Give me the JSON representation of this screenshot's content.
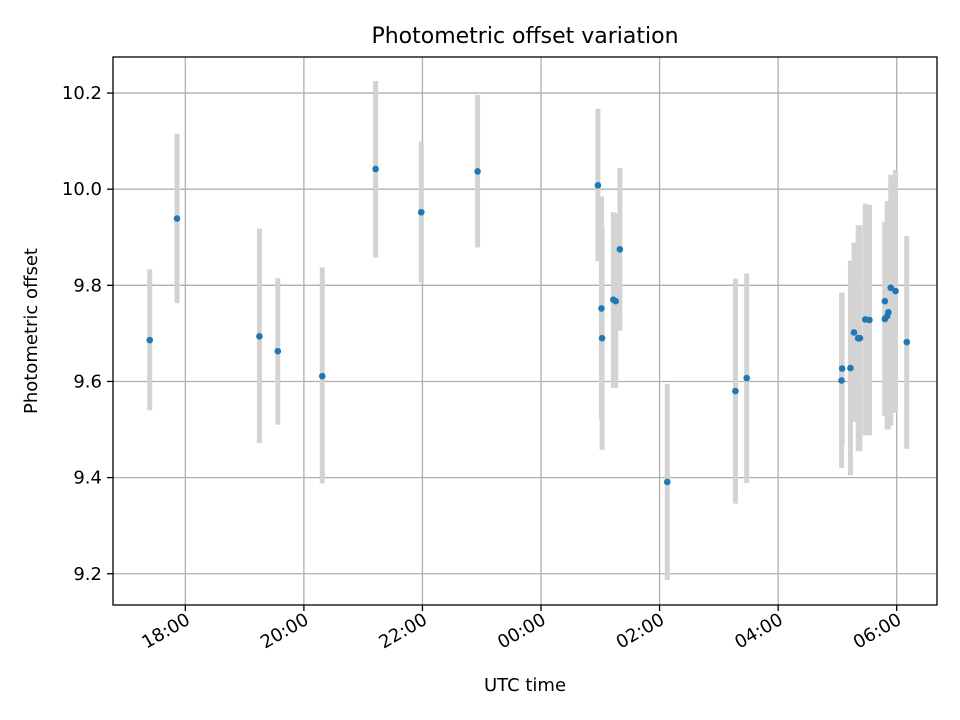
{
  "chart_data": {
    "type": "scatter",
    "title": "Photometric offset variation",
    "xlabel": "UTC time",
    "ylabel": "Photometric offset",
    "x_unit": "hours since 18:00 UTC",
    "xlim": [
      -1.22,
      12.68
    ],
    "ylim": [
      9.135,
      10.275
    ],
    "grid": true,
    "x_ticks": [
      {
        "value": 0,
        "label": "18:00"
      },
      {
        "value": 2,
        "label": "20:00"
      },
      {
        "value": 4,
        "label": "22:00"
      },
      {
        "value": 6,
        "label": "00:00"
      },
      {
        "value": 8,
        "label": "02:00"
      },
      {
        "value": 10,
        "label": "04:00"
      },
      {
        "value": 12,
        "label": "06:00"
      }
    ],
    "y_ticks": [
      {
        "value": 9.2,
        "label": "9.2"
      },
      {
        "value": 9.4,
        "label": "9.4"
      },
      {
        "value": 9.6,
        "label": "9.6"
      },
      {
        "value": 9.8,
        "label": "9.8"
      },
      {
        "value": 10.0,
        "label": "10.0"
      },
      {
        "value": 10.2,
        "label": "10.2"
      }
    ],
    "colors": {
      "point": "#1f77b4",
      "errorbar": "#d3d3d3",
      "grid": "#b0b0b0"
    },
    "points": [
      {
        "x": -0.6,
        "y": 9.686,
        "lo": 9.54,
        "hi": 9.833
      },
      {
        "x": -0.14,
        "y": 9.939,
        "lo": 9.763,
        "hi": 10.115
      },
      {
        "x": 1.25,
        "y": 9.694,
        "lo": 9.472,
        "hi": 9.918
      },
      {
        "x": 1.56,
        "y": 9.663,
        "lo": 9.51,
        "hi": 9.815
      },
      {
        "x": 2.31,
        "y": 9.611,
        "lo": 9.388,
        "hi": 9.837
      },
      {
        "x": 3.21,
        "y": 10.042,
        "lo": 9.858,
        "hi": 10.225
      },
      {
        "x": 3.98,
        "y": 9.952,
        "lo": 9.806,
        "hi": 10.099
      },
      {
        "x": 4.93,
        "y": 10.037,
        "lo": 9.879,
        "hi": 10.196
      },
      {
        "x": 6.96,
        "y": 10.008,
        "lo": 9.85,
        "hi": 10.167
      },
      {
        "x": 7.02,
        "y": 9.752,
        "lo": 9.52,
        "hi": 9.985
      },
      {
        "x": 7.03,
        "y": 9.69,
        "lo": 9.458,
        "hi": 9.921
      },
      {
        "x": 7.22,
        "y": 9.77,
        "lo": 9.587,
        "hi": 9.952
      },
      {
        "x": 7.26,
        "y": 9.767,
        "lo": 9.587,
        "hi": 9.95
      },
      {
        "x": 7.33,
        "y": 9.875,
        "lo": 9.706,
        "hi": 10.044
      },
      {
        "x": 8.13,
        "y": 9.391,
        "lo": 9.187,
        "hi": 9.595
      },
      {
        "x": 9.28,
        "y": 9.58,
        "lo": 9.346,
        "hi": 9.814
      },
      {
        "x": 9.47,
        "y": 9.607,
        "lo": 9.389,
        "hi": 9.825
      },
      {
        "x": 11.07,
        "y": 9.602,
        "lo": 9.42,
        "hi": 9.783
      },
      {
        "x": 11.08,
        "y": 9.627,
        "lo": 9.469,
        "hi": 9.785
      },
      {
        "x": 11.22,
        "y": 9.628,
        "lo": 9.405,
        "hi": 9.851
      },
      {
        "x": 11.28,
        "y": 9.702,
        "lo": 9.516,
        "hi": 9.889
      },
      {
        "x": 11.35,
        "y": 9.69,
        "lo": 9.455,
        "hi": 9.925
      },
      {
        "x": 11.38,
        "y": 9.69,
        "lo": 9.455,
        "hi": 9.925
      },
      {
        "x": 11.47,
        "y": 9.729,
        "lo": 9.488,
        "hi": 9.97
      },
      {
        "x": 11.54,
        "y": 9.728,
        "lo": 9.488,
        "hi": 9.967
      },
      {
        "x": 11.8,
        "y": 9.767,
        "lo": 9.528,
        "hi": 9.932
      },
      {
        "x": 11.8,
        "y": 9.73,
        "lo": 9.528,
        "hi": 9.932
      },
      {
        "x": 11.84,
        "y": 9.736,
        "lo": 9.5,
        "hi": 9.975
      },
      {
        "x": 11.86,
        "y": 9.744,
        "lo": 9.5,
        "hi": 9.975
      },
      {
        "x": 11.9,
        "y": 9.795,
        "lo": 9.508,
        "hi": 10.03
      },
      {
        "x": 11.98,
        "y": 9.788,
        "lo": 9.535,
        "hi": 10.04
      },
      {
        "x": 12.17,
        "y": 9.682,
        "lo": 9.46,
        "hi": 9.903
      }
    ]
  }
}
